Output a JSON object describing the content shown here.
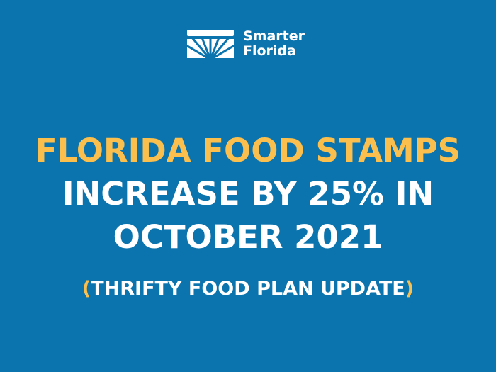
{
  "logo": {
    "line1": "Smarter",
    "line2": "Florida",
    "icon": "sunrise-logo-icon"
  },
  "headline": {
    "line1": "FLORIDA FOOD STAMPS",
    "line2": "INCREASE BY 25% IN",
    "line3": "OCTOBER 2021"
  },
  "subtitle": {
    "open_paren": "(",
    "text": "THRIFTY FOOD PLAN UPDATE",
    "close_paren": ")"
  },
  "colors": {
    "background": "#0b73ad",
    "accent": "#fbbf4d",
    "text": "#ffffff"
  }
}
